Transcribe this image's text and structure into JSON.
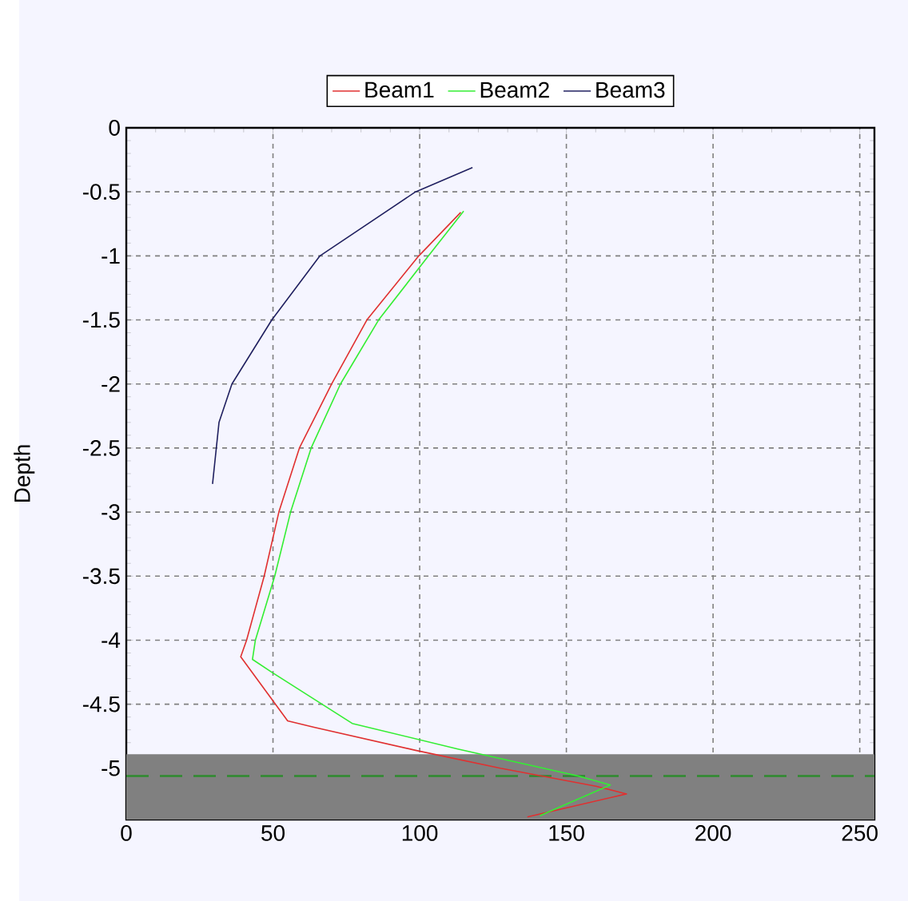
{
  "chart_data": {
    "type": "line",
    "ylabel": "Depth",
    "legend": "top",
    "grid": true,
    "line_style": "solid",
    "marker": "none",
    "xlim": [
      0,
      255
    ],
    "ylim": [
      -5.4,
      0
    ],
    "xticks": [
      0,
      50,
      100,
      150,
      200,
      250
    ],
    "yticks": [
      0,
      -0.5,
      -1,
      -1.5,
      -2,
      -2.5,
      -3,
      -3.5,
      -4,
      -4.5,
      -5
    ],
    "bands": [
      {
        "axis": "y",
        "from": -5.4,
        "to": -4.89,
        "color": "#808080"
      }
    ],
    "ref_lines": [
      {
        "axis": "y",
        "value": -5.06,
        "color": "#2e8b2e",
        "line_style": "dashed"
      }
    ],
    "series": [
      {
        "name": "Beam1",
        "color": "#e03030",
        "x": [
          114,
          99.7,
          82,
          70,
          59,
          52,
          47,
          41,
          39,
          55,
          64,
          98.6,
          127.5,
          160,
          170.5,
          136.7
        ],
        "values": [
          -0.66,
          -1,
          -1.5,
          -2,
          -2.5,
          -3,
          -3.5,
          -4,
          -4.13,
          -4.63,
          -4.68,
          -4.86,
          -5.0,
          -5.14,
          -5.2,
          -5.38
        ]
      },
      {
        "name": "Beam2",
        "color": "#33ee33",
        "x": [
          115,
          103,
          86,
          73,
          63,
          56,
          50.6,
          44,
          43,
          49.6,
          77,
          113,
          154,
          165,
          141
        ],
        "values": [
          -0.65,
          -1,
          -1.5,
          -2,
          -2.5,
          -3,
          -3.5,
          -4,
          -4.15,
          -4.25,
          -4.65,
          -4.85,
          -5.06,
          -5.13,
          -5.37
        ]
      },
      {
        "name": "Beam3",
        "color": "#202060",
        "x": [
          118,
          98.6,
          66,
          49.6,
          36,
          31.6,
          29.4
        ],
        "values": [
          -0.31,
          -0.5,
          -1,
          -1.5,
          -2,
          -2.3,
          -2.78
        ]
      }
    ]
  }
}
